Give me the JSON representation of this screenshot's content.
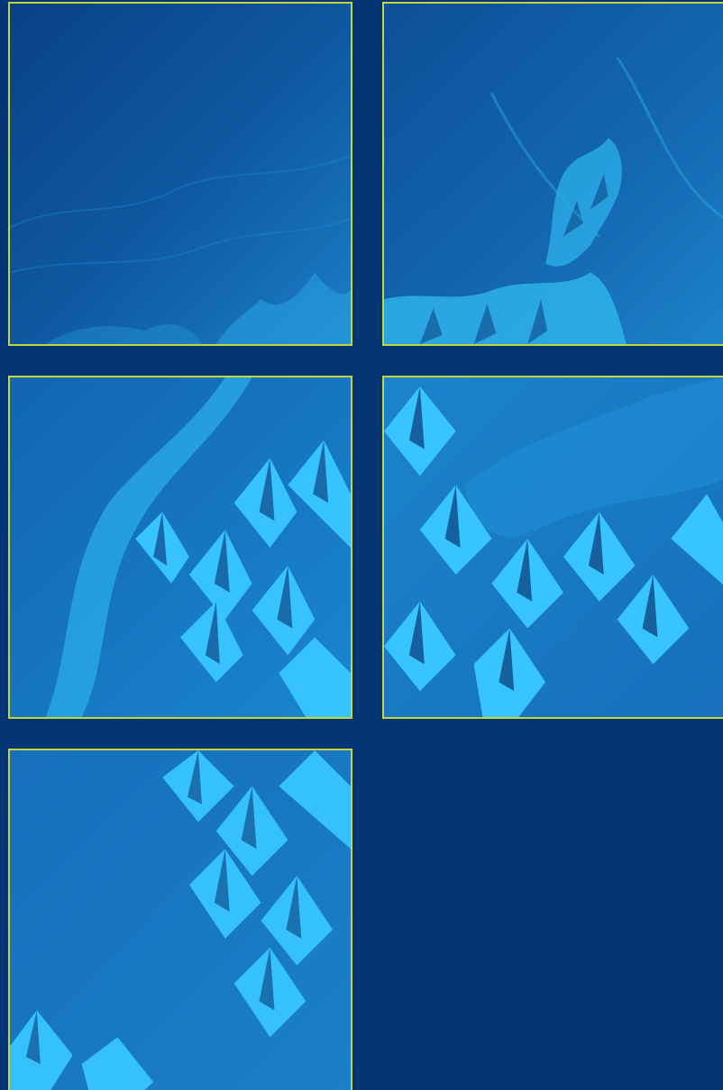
{
  "colors": {
    "background": "#033474",
    "tile_border": "#c4d53a",
    "terrain_deep": "#0a4a8c",
    "terrain_mid": "#1577c0",
    "terrain_light": "#27b2ee",
    "terrain_highlight": "#3fc8ff",
    "shadow": "#0a2d66"
  },
  "tiles": [
    {
      "id": "tile-1",
      "content": "terrain-imagery",
      "relief": 0.15
    },
    {
      "id": "tile-2",
      "content": "terrain-imagery",
      "relief": 0.45
    },
    {
      "id": "tile-3",
      "content": "terrain-imagery",
      "relief": 0.85
    },
    {
      "id": "tile-4",
      "content": "terrain-imagery",
      "relief": 0.85
    },
    {
      "id": "tile-5",
      "content": "terrain-imagery",
      "relief": 0.65
    }
  ]
}
